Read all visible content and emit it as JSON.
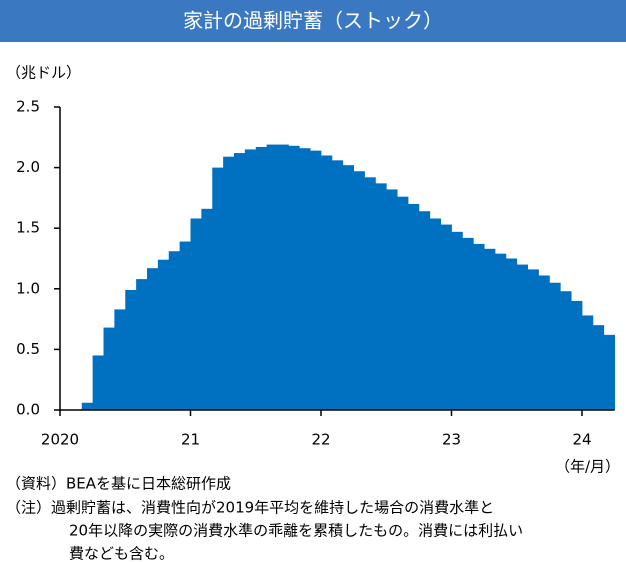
{
  "chart_data": {
    "type": "bar",
    "title": "家計の過剰貯蓄（ストック）",
    "y_unit": "（兆ドル）",
    "x_unit": "（年/月）",
    "source": "（資料）BEAを基に日本総研作成",
    "note_lines": [
      "（注）過剰貯蓄は、消費性向が2019年平均を維持した場合の消費水準と",
      "20年以降の実際の消費水準の乖離を累積したもの。消費には利払い",
      "費なども含む。"
    ],
    "categories": [
      "2020",
      null,
      null,
      null,
      null,
      null,
      null,
      null,
      null,
      null,
      null,
      null,
      "21",
      null,
      null,
      null,
      null,
      null,
      null,
      null,
      null,
      null,
      null,
      null,
      "22",
      null,
      null,
      null,
      null,
      null,
      null,
      null,
      null,
      null,
      null,
      null,
      "23",
      null,
      null,
      null,
      null,
      null,
      null,
      null,
      null,
      null,
      null,
      null,
      "24",
      null,
      null
    ],
    "values": [
      0,
      0,
      0.06,
      0.45,
      0.68,
      0.83,
      0.99,
      1.08,
      1.17,
      1.24,
      1.31,
      1.39,
      1.58,
      1.66,
      2.0,
      2.09,
      2.12,
      2.15,
      2.17,
      2.19,
      2.19,
      2.18,
      2.16,
      2.14,
      2.1,
      2.06,
      2.02,
      1.97,
      1.92,
      1.87,
      1.82,
      1.76,
      1.7,
      1.64,
      1.58,
      1.53,
      1.47,
      1.42,
      1.37,
      1.33,
      1.29,
      1.25,
      1.2,
      1.16,
      1.11,
      1.05,
      0.98,
      0.9,
      0.78,
      0.7,
      0.62
    ],
    "color": "#0070c0",
    "title_color": "#3a78c2",
    "ylim": [
      0,
      2.5
    ],
    "yticks": [
      {
        "value": 0,
        "label": "0.0"
      },
      0.5,
      {
        "value": 1,
        "label": "1.0"
      },
      1.5,
      {
        "value": 2,
        "label": "2.0"
      },
      2.5
    ],
    "grid": false
  }
}
